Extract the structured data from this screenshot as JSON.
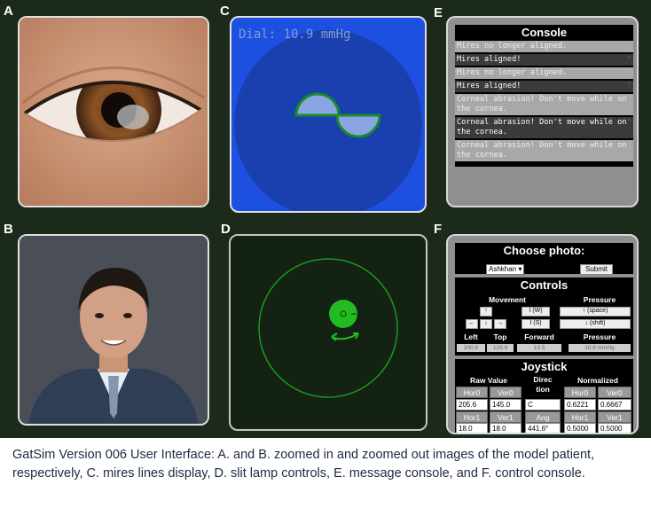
{
  "panel_labels": {
    "a": "A",
    "b": "B",
    "c": "C",
    "d": "D",
    "e": "E",
    "f": "F"
  },
  "mires": {
    "dial_text": "Dial: 10.9 mmHg"
  },
  "console": {
    "title": "Console",
    "messages": [
      {
        "text": "Mires no longer aligned.",
        "style": "gray"
      },
      {
        "text": "Mires aligned!",
        "style": "dark"
      },
      {
        "text": "Mires no longer aligned.",
        "style": "gray"
      },
      {
        "text": "Mires aligned!",
        "style": "dark"
      },
      {
        "text": "Corneal abrasion! Don't move while on the cornea.",
        "style": "gray"
      },
      {
        "text": "Corneal abrasion! Don't move while on the cornea.",
        "style": "dark"
      },
      {
        "text": "Corneal abrasion! Don't move while on the cornea.",
        "style": "gray"
      }
    ]
  },
  "control": {
    "choose_photo": {
      "title": "Choose photo:",
      "selected": "Ashkhan",
      "submit": "Submit"
    },
    "controls": {
      "title": "Controls",
      "movement_header": "Movement",
      "pressure_header": "Pressure",
      "up": "↑",
      "down": "↓",
      "left": "←",
      "right": "→",
      "key_w": "I (W)",
      "key_s": "I (S)",
      "pressure_up": "↑ (space)",
      "pressure_down": "↓ (shift)",
      "readout_headers": [
        "Left",
        "Top",
        "Forward",
        "Pressure"
      ],
      "readout_values": [
        "200.6",
        "128.9",
        "13.5",
        "10.9 mmHg"
      ]
    },
    "joystick": {
      "title": "Joystick",
      "raw_header": "Raw Value",
      "direction_header": "Direc tion",
      "normalized_header": "Normalized",
      "hor0": "Hor0",
      "ver0": "Ver0",
      "hor1": "Hor1",
      "ver1": "Ver1",
      "ang": "Ang",
      "raw_hor0": "205.6",
      "raw_ver0": "145.0",
      "direction": "C",
      "norm_hor0": "0.6221",
      "norm_ver0": "0.6667",
      "raw_hor1": "18.0",
      "raw_ver1": "18.0",
      "angle": "441.6°",
      "norm_hor1": "0.5000",
      "norm_ver1": "0.5000"
    }
  },
  "caption": "GatSim Version 006 User Interface: A. and B. zoomed in and zoomed out images of the model patient, respectively, C. mires lines display, D. slit lamp controls, E. message console, and F. control console."
}
